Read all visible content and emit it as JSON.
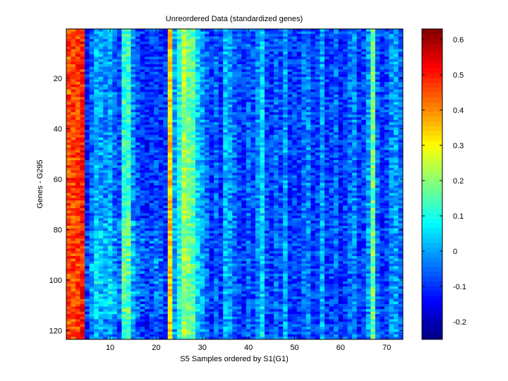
{
  "chart_data": {
    "type": "heatmap",
    "title": "Unreordered Data (standardized genes)",
    "xlabel": "S5 Samples ordered by S1(G1)",
    "ylabel": "Genes - G295",
    "xlim": [
      0.5,
      73.5
    ],
    "ylim": [
      0.5,
      123.5
    ],
    "n_cols": 73,
    "n_rows": 123,
    "x_ticks": [
      10,
      20,
      30,
      40,
      50,
      60,
      70
    ],
    "y_ticks": [
      20,
      40,
      60,
      80,
      100,
      120
    ],
    "colormap": "jet",
    "color_range": [
      -0.25,
      0.63
    ],
    "colorbar_ticks": [
      -0.2,
      -0.1,
      0,
      0.1,
      0.2,
      0.3,
      0.4,
      0.5,
      0.6
    ],
    "column_profile": [
      0.45,
      0.46,
      0.47,
      0.5,
      -0.12,
      -0.05,
      0.02,
      0.0,
      -0.03,
      0.0,
      -0.05,
      -0.08,
      0.12,
      0.12,
      -0.02,
      -0.07,
      -0.1,
      -0.12,
      -0.1,
      -0.08,
      -0.1,
      -0.09,
      0.33,
      0.0,
      0.1,
      0.22,
      0.18,
      0.15,
      0.05,
      0.0,
      -0.05,
      -0.1,
      -0.05,
      -0.1,
      0.02,
      0.0,
      -0.05,
      -0.08,
      -0.1,
      -0.05,
      -0.08,
      -0.02,
      0.05,
      -0.08,
      -0.1,
      -0.05,
      -0.08,
      0.0,
      -0.1,
      -0.08,
      -0.1,
      -0.05,
      -0.02,
      -0.1,
      -0.08,
      0.0,
      -0.1,
      -0.08,
      -0.05,
      -0.12,
      -0.08,
      -0.05,
      -0.02,
      -0.1,
      -0.08,
      0.0,
      0.18,
      -0.05,
      -0.1,
      -0.08,
      -0.02,
      0.0,
      -0.05
    ]
  }
}
